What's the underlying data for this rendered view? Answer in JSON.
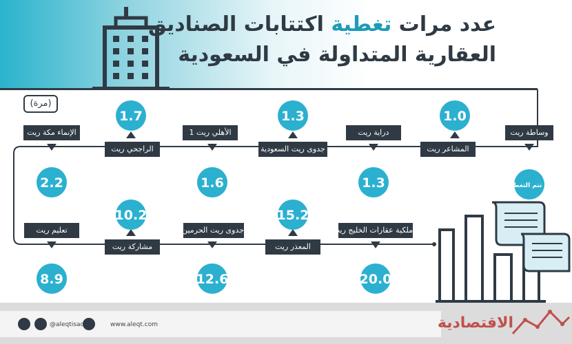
{
  "title": {
    "line1_accent": "تغطية",
    "line1_rest_right": "عدد مرات",
    "line1_rest_left": "اكتتابات الصناديق",
    "line2": "العقارية المتداولة في السعودية"
  },
  "unit_label": "(مرة)",
  "not_covered_label": "لم تتم التغطية",
  "footer": {
    "handle": "@aleqtisadiah",
    "website": "www.aleqt.com",
    "logo_text": "الاقتصادية"
  },
  "colors": {
    "dark": "#2f3a44",
    "accent": "#1f9fc0",
    "circle": "#2bb0d0"
  },
  "chart_data": {
    "type": "bar",
    "title": "عدد مرات تغطية اكتتابات الصناديق العقارية المتداولة في السعودية",
    "ylabel": "(مرة)",
    "categories": [
      "وساطة ريت",
      "المشاعر ريت",
      "دراية ريت",
      "جدوى ريت السعودية",
      "الأهلي ريت 1",
      "الراجحي ريت",
      "الإنماء مكة ريت",
      "ملكية عقارات الخليج ريت",
      "المعذر ريت",
      "جدوى ريت الحرمين",
      "مشاركة ريت",
      "تعليم ريت"
    ],
    "values": [
      null,
      1.0,
      1.3,
      1.3,
      1.6,
      1.7,
      2.2,
      20.0,
      15.2,
      12.6,
      10.2,
      8.9
    ],
    "value_labels": [
      "لم تتم التغطية",
      "1.0",
      "1.3",
      "1.3",
      "1.6",
      "1.7",
      "2.2",
      "20.0",
      "15.2",
      "12.6",
      "10.2",
      "8.9"
    ]
  }
}
